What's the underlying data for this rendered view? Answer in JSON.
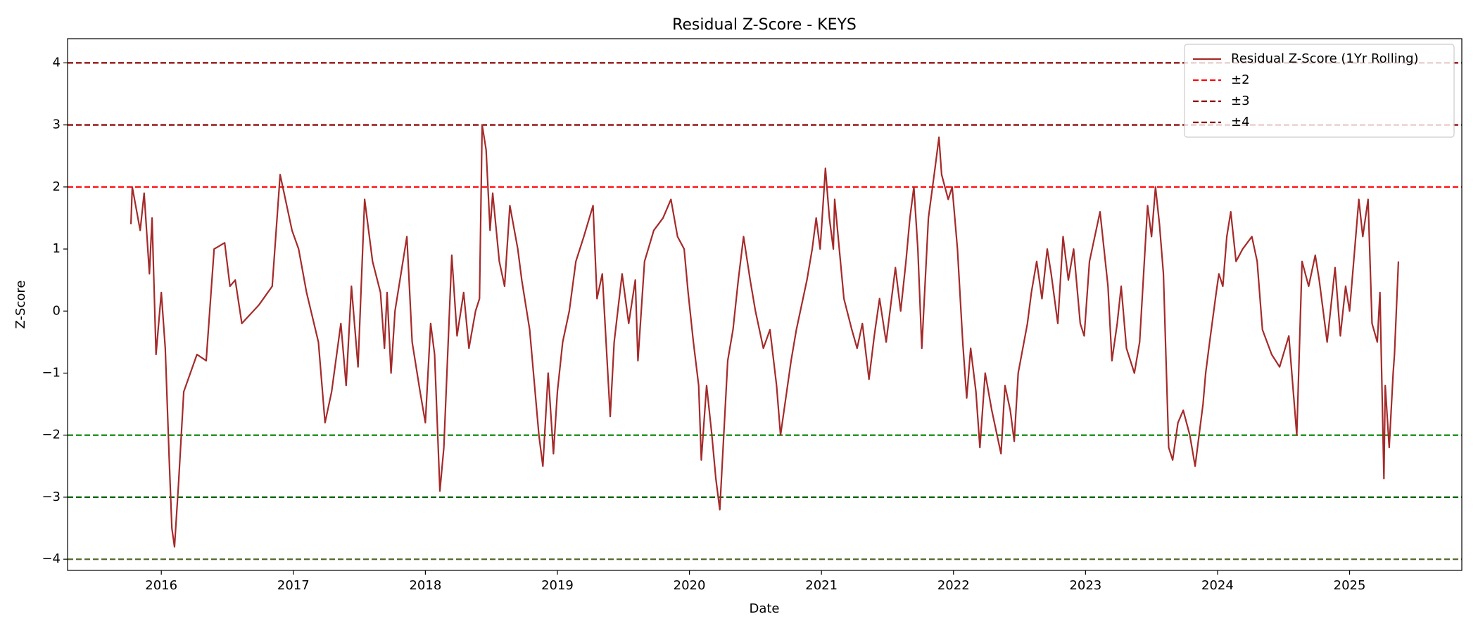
{
  "chart_data": {
    "type": "line",
    "title": "Residual Z-Score - KEYS",
    "xlabel": "Date",
    "ylabel": "Z-Score",
    "xlim": [
      2015.29,
      2025.85
    ],
    "ylim": [
      -4.18,
      4.39
    ],
    "xticks": [
      2016,
      2017,
      2018,
      2019,
      2020,
      2021,
      2022,
      2023,
      2024,
      2025
    ],
    "yticks": [
      {
        "value": -4,
        "label": "−4"
      },
      {
        "value": -3,
        "label": "−3"
      },
      {
        "value": -2,
        "label": "−2"
      },
      {
        "value": -1,
        "label": "−1"
      },
      0,
      1,
      2,
      3,
      4
    ],
    "legend": "upper right",
    "series": [
      {
        "name": "Residual Z-Score (1Yr Rolling)",
        "color": "#a52a2a",
        "x": [
          2015.77,
          2015.78,
          2015.84,
          2015.87,
          2015.91,
          2015.93,
          2015.96,
          2016.0,
          2016.03,
          2016.06,
          2016.08,
          2016.1,
          2016.13,
          2016.17,
          2016.27,
          2016.34,
          2016.4,
          2016.48,
          2016.52,
          2016.56,
          2016.61,
          2016.74,
          2016.84,
          2016.9,
          2016.99,
          2017.04,
          2017.1,
          2017.19,
          2017.24,
          2017.29,
          2017.36,
          2017.4,
          2017.44,
          2017.49,
          2017.54,
          2017.6,
          2017.66,
          2017.69,
          2017.71,
          2017.74,
          2017.77,
          2017.86,
          2017.9,
          2017.96,
          2018.0,
          2018.04,
          2018.07,
          2018.11,
          2018.14,
          2018.2,
          2018.24,
          2018.29,
          2018.33,
          2018.38,
          2018.41,
          2018.43,
          2018.46,
          2018.49,
          2018.51,
          2018.56,
          2018.6,
          2018.64,
          2018.7,
          2018.73,
          2018.76,
          2018.79,
          2018.86,
          2018.89,
          2018.93,
          2018.97,
          2019.0,
          2019.04,
          2019.09,
          2019.14,
          2019.2,
          2019.27,
          2019.3,
          2019.34,
          2019.4,
          2019.43,
          2019.49,
          2019.54,
          2019.59,
          2019.61,
          2019.66,
          2019.73,
          2019.8,
          2019.86,
          2019.91,
          2019.96,
          2019.99,
          2020.03,
          2020.07,
          2020.09,
          2020.13,
          2020.17,
          2020.2,
          2020.23,
          2020.26,
          2020.29,
          2020.33,
          2020.37,
          2020.41,
          2020.46,
          2020.5,
          2020.56,
          2020.61,
          2020.66,
          2020.69,
          2020.73,
          2020.77,
          2020.81,
          2020.89,
          2020.93,
          2020.96,
          2020.99,
          2021.03,
          2021.06,
          2021.09,
          2021.1,
          2021.17,
          2021.23,
          2021.27,
          2021.31,
          2021.36,
          2021.4,
          2021.44,
          2021.49,
          2021.56,
          2021.6,
          2021.64,
          2021.67,
          2021.7,
          2021.73,
          2021.76,
          2021.81,
          2021.86,
          2021.89,
          2021.91,
          2021.96,
          2021.99,
          2022.03,
          2022.07,
          2022.1,
          2022.13,
          2022.17,
          2022.2,
          2022.24,
          2022.29,
          2022.36,
          2022.39,
          2022.43,
          2022.46,
          2022.49,
          2022.56,
          2022.59,
          2022.63,
          2022.67,
          2022.71,
          2022.74,
          2022.79,
          2022.83,
          2022.87,
          2022.91,
          2022.96,
          2022.99,
          2023.03,
          2023.11,
          2023.14,
          2023.17,
          2023.2,
          2023.24,
          2023.27,
          2023.31,
          2023.37,
          2023.41,
          2023.44,
          2023.47,
          2023.5,
          2023.53,
          2023.56,
          2023.59,
          2023.63,
          2023.66,
          2023.7,
          2023.74,
          2023.79,
          2023.83,
          2023.86,
          2023.89,
          2023.91,
          2023.94,
          2023.99,
          2024.01,
          2024.04,
          2024.07,
          2024.1,
          2024.14,
          2024.19,
          2024.26,
          2024.3,
          2024.34,
          2024.41,
          2024.47,
          2024.54,
          2024.57,
          2024.6,
          2024.64,
          2024.69,
          2024.74,
          2024.77,
          2024.83,
          2024.89,
          2024.93,
          2024.97,
          2025.0,
          2025.07,
          2025.1,
          2025.14,
          2025.17,
          2025.21,
          2025.23,
          2025.26,
          2025.27,
          2025.3,
          2025.33,
          2025.34,
          2025.37
        ],
        "values": [
          1.4,
          2.0,
          1.3,
          1.9,
          0.6,
          1.5,
          -0.7,
          0.3,
          -0.6,
          -2.4,
          -3.5,
          -3.8,
          -2.8,
          -1.3,
          -0.7,
          -0.8,
          1.0,
          1.1,
          0.4,
          0.5,
          -0.2,
          0.1,
          0.4,
          2.2,
          1.3,
          1.0,
          0.3,
          -0.5,
          -1.8,
          -1.3,
          -0.2,
          -1.2,
          0.4,
          -0.9,
          1.8,
          0.8,
          0.3,
          -0.6,
          0.3,
          -1.0,
          0.0,
          1.2,
          -0.5,
          -1.3,
          -1.8,
          -0.2,
          -0.7,
          -2.9,
          -2.2,
          0.9,
          -0.4,
          0.3,
          -0.6,
          0.0,
          0.2,
          3.0,
          2.6,
          1.3,
          1.9,
          0.8,
          0.4,
          1.7,
          1.0,
          0.5,
          0.1,
          -0.3,
          -2.0,
          -2.5,
          -1.0,
          -2.3,
          -1.3,
          -0.5,
          0.0,
          0.8,
          1.2,
          1.7,
          0.2,
          0.6,
          -1.7,
          -0.5,
          0.6,
          -0.2,
          0.5,
          -0.8,
          0.8,
          1.3,
          1.5,
          1.8,
          1.2,
          1.0,
          0.3,
          -0.5,
          -1.2,
          -2.4,
          -1.2,
          -2.0,
          -2.7,
          -3.2,
          -2.0,
          -0.8,
          -0.3,
          0.5,
          1.2,
          0.5,
          0.0,
          -0.6,
          -0.3,
          -1.2,
          -2.0,
          -1.4,
          -0.8,
          -0.3,
          0.5,
          1.0,
          1.5,
          1.0,
          2.3,
          1.5,
          1.0,
          1.8,
          0.2,
          -0.3,
          -0.6,
          -0.2,
          -1.1,
          -0.4,
          0.2,
          -0.5,
          0.7,
          0.0,
          0.8,
          1.5,
          2.0,
          1.0,
          -0.6,
          1.5,
          2.3,
          2.8,
          2.2,
          1.8,
          2.0,
          1.0,
          -0.5,
          -1.4,
          -0.6,
          -1.3,
          -2.2,
          -1.0,
          -1.6,
          -2.3,
          -1.2,
          -1.6,
          -2.1,
          -1.0,
          -0.2,
          0.3,
          0.8,
          0.2,
          1.0,
          0.6,
          -0.2,
          1.2,
          0.5,
          1.0,
          -0.2,
          -0.4,
          0.8,
          1.6,
          1.0,
          0.4,
          -0.8,
          -0.2,
          0.4,
          -0.6,
          -1.0,
          -0.5,
          0.6,
          1.7,
          1.2,
          2.0,
          1.4,
          0.6,
          -2.2,
          -2.4,
          -1.8,
          -1.6,
          -2.0,
          -2.5,
          -2.0,
          -1.5,
          -1.0,
          -0.5,
          0.3,
          0.6,
          0.4,
          1.2,
          1.6,
          0.8,
          1.0,
          1.2,
          0.8,
          -0.3,
          -0.7,
          -0.9,
          -0.4,
          -1.2,
          -2.0,
          0.8,
          0.4,
          0.9,
          0.5,
          -0.5,
          0.7,
          -0.4,
          0.4,
          0.0,
          1.8,
          1.2,
          1.8,
          -0.2,
          -0.5,
          0.3,
          -2.7,
          -1.2,
          -2.2,
          -1.0,
          -0.7,
          0.8
        ]
      }
    ],
    "reference_lines": [
      {
        "name": "±2",
        "upper": 2,
        "lower": -2,
        "upper_color": "#ff0000",
        "lower_color": "#008000"
      },
      {
        "name": "±3",
        "upper": 3,
        "lower": -3,
        "upper_color": "#8b0000",
        "lower_color": "#006400"
      },
      {
        "name": "±4",
        "upper": 4,
        "lower": -4,
        "upper_color": "#8b0000",
        "lower_color": "#556b2f"
      }
    ]
  }
}
